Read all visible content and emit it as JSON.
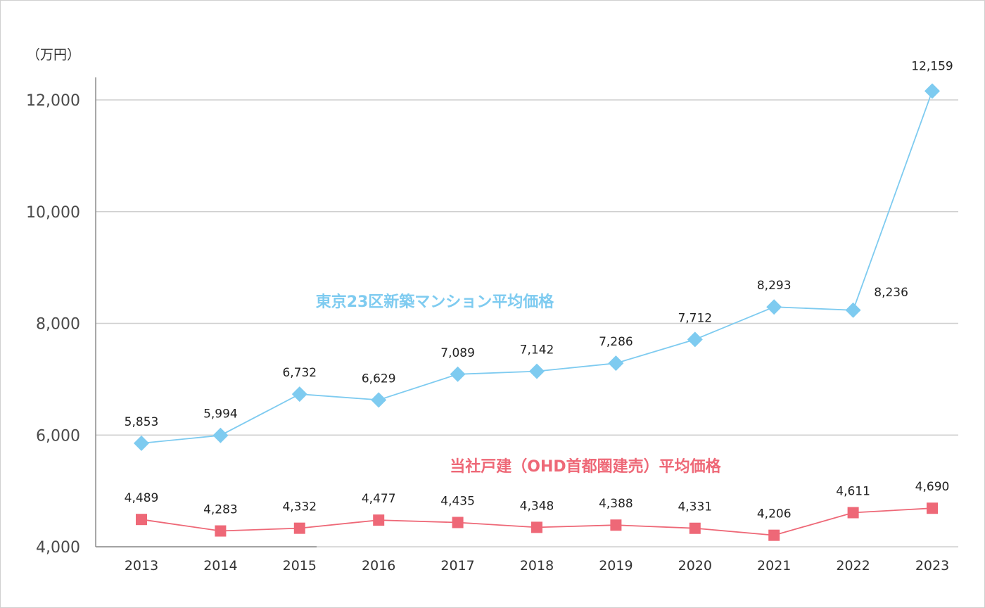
{
  "chart_data": {
    "type": "line",
    "unit_label": "（万円）",
    "x": [
      "2013",
      "2014",
      "2015",
      "2016",
      "2017",
      "2018",
      "2019",
      "2020",
      "2021",
      "2022",
      "2023"
    ],
    "ylim": [
      4000,
      12500
    ],
    "yticks": [
      4000,
      6000,
      8000,
      10000,
      12000
    ],
    "ytick_labels": [
      "4,000",
      "6,000",
      "8,000",
      "10,000",
      "12,000"
    ],
    "grid": true,
    "series": [
      {
        "name": "東京23区新築マンション平均価格",
        "color": "#7ecbf0",
        "marker": "diamond",
        "values": [
          5853,
          5994,
          6732,
          6629,
          7089,
          7142,
          7286,
          7712,
          8293,
          8236,
          12159
        ],
        "labels": [
          "5,853",
          "5,994",
          "6,732",
          "6,629",
          "7,089",
          "7,142",
          "7,286",
          "7,712",
          "8,293",
          "8,236",
          "12,159"
        ]
      },
      {
        "name": "当社戸建（OHD首都圏建売）平均価格",
        "color": "#ee6877",
        "marker": "square",
        "values": [
          4489,
          4283,
          4332,
          4477,
          4435,
          4348,
          4388,
          4331,
          4206,
          4611,
          4690
        ],
        "labels": [
          "4,489",
          "4,283",
          "4,332",
          "4,477",
          "4,435",
          "4,348",
          "4,388",
          "4,331",
          "4,206",
          "4,611",
          "4,690"
        ]
      }
    ]
  }
}
